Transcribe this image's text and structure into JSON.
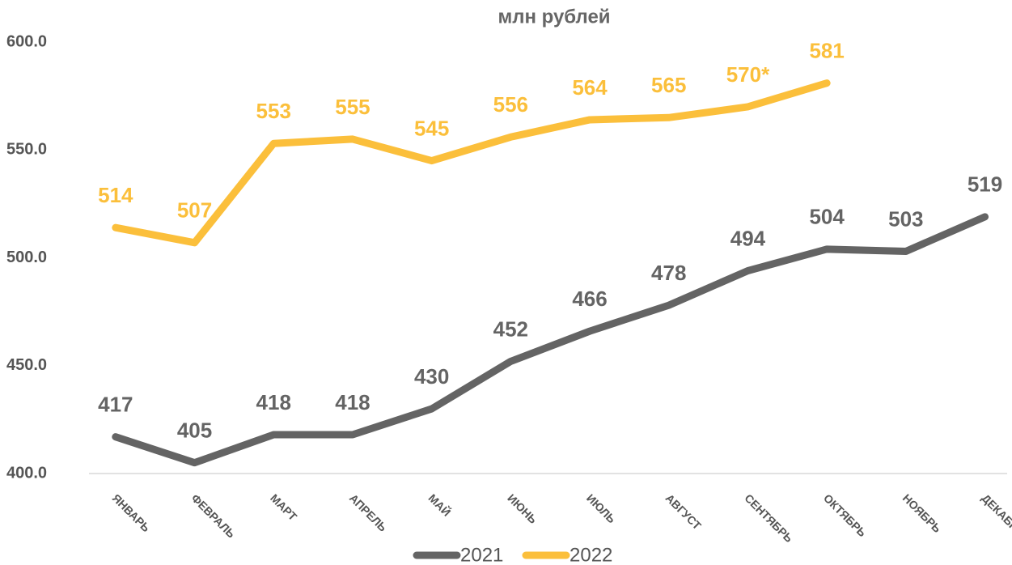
{
  "chart_data": {
    "type": "line",
    "title": "млн рублей",
    "categories": [
      "ЯНВАРЬ",
      "ФЕВРАЛЬ",
      "МАРТ",
      "АПРЕЛЬ",
      "МАЙ",
      "ИЮНЬ",
      "ИЮЛЬ",
      "АВГУСТ",
      "СЕНТЯБРЬ",
      "ОКТЯБРЬ",
      "НОЯБРЬ",
      "ДЕКАБРЬ"
    ],
    "series": [
      {
        "name": "2021",
        "color": "#646464",
        "values": [
          417,
          405,
          418,
          418,
          430,
          452,
          466,
          478,
          494,
          504,
          503,
          519
        ]
      },
      {
        "name": "2022",
        "color": "#fbbf3b",
        "values": [
          514,
          507,
          553,
          555,
          545,
          556,
          564,
          565,
          570,
          581,
          null,
          null
        ],
        "value_labels": [
          "514",
          "507",
          "553",
          "555",
          "545",
          "556",
          "564",
          "565",
          "570*",
          "581",
          null,
          null
        ]
      }
    ],
    "ylim": [
      400,
      600
    ],
    "yticks": [
      {
        "value": 400,
        "label": "400.0"
      },
      {
        "value": 450,
        "label": "450.0"
      },
      {
        "value": 500,
        "label": "500.0"
      },
      {
        "value": 550,
        "label": "550.0"
      },
      {
        "value": 600,
        "label": "600.0"
      }
    ],
    "grid": false,
    "legend": "bottom"
  }
}
